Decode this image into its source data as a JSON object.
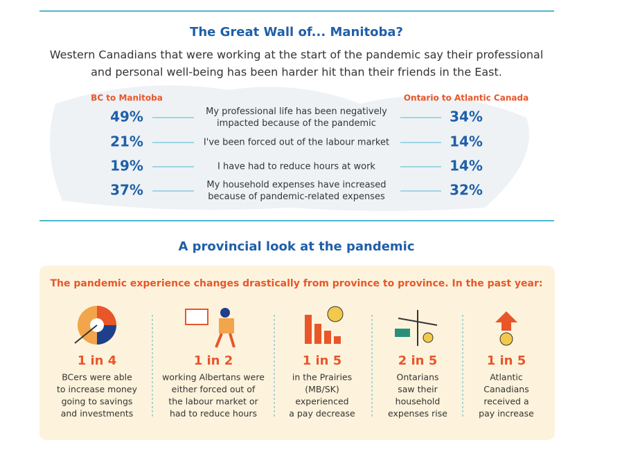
{
  "section1": {
    "title": "The Great Wall of... Manitoba?",
    "subtitle": [
      "Western Canadians that were working at the start of the pandemic say their professional",
      "and personal well-being has been harder hit than their friends in the East."
    ],
    "left_header": "BC to Manitoba",
    "right_header": "Ontario to Atlantic Canada",
    "rows": [
      {
        "left": "49%",
        "label": [
          "My professional life has been negatively",
          "impacted because of the pandemic"
        ],
        "right": "34%"
      },
      {
        "left": "21%",
        "label": [
          "I've been forced out of the labour market"
        ],
        "right": "14%"
      },
      {
        "left": "19%",
        "label": [
          "I have had to reduce hours at work"
        ],
        "right": "14%"
      },
      {
        "left": "37%",
        "label": [
          "My household expenses have increased",
          "because of pandemic-related expenses"
        ],
        "right": "32%"
      }
    ]
  },
  "section2": {
    "title": "A provincial look at the pandemic",
    "banner": "The pandemic experience changes drastically from province to province. In the past year:",
    "stats": [
      {
        "ratio": "1 in 4",
        "text": [
          "BCers were able",
          "to increase money",
          "going to savings",
          "and investments"
        ]
      },
      {
        "ratio": "1 in 2",
        "text": [
          "working Albertans were",
          "either forced out of",
          "the labour market or",
          "had to reduce hours"
        ]
      },
      {
        "ratio": "1 in 5",
        "text": [
          "in the Prairies",
          "(MB/SK)",
          "experienced",
          "a pay decrease"
        ]
      },
      {
        "ratio": "2 in 5",
        "text": [
          "Ontarians",
          "saw their",
          "household",
          "expenses rise"
        ]
      },
      {
        "ratio": "1 in 5",
        "text": [
          "Atlantic",
          "Canadians",
          "received a",
          "pay increase"
        ]
      }
    ]
  }
}
